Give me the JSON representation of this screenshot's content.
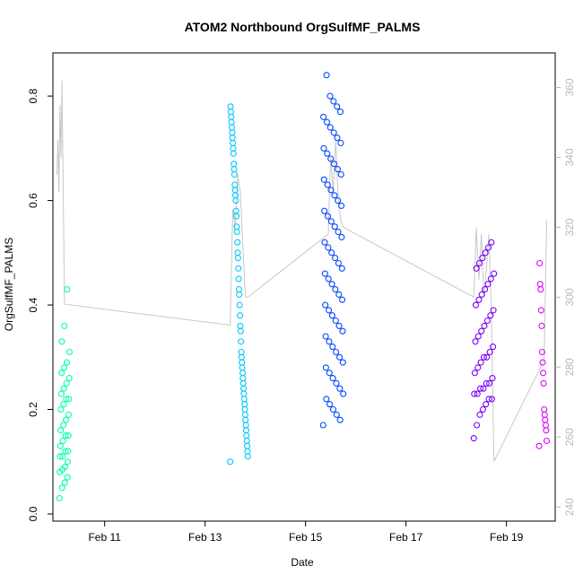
{
  "chart_data": {
    "type": "scatter",
    "title": "ATOM2 Northbound OrgSulfMF_PALMS",
    "xlabel": "Date",
    "ylabel": "OrgSulfMF_PALMS",
    "x_unit": "days of February 2017",
    "xlim": [
      9.97,
      19.97
    ],
    "ylim": [
      0.0,
      0.85
    ],
    "y2lim": [
      238,
      365
    ],
    "x_ticks": [
      {
        "value": 11,
        "label": "Feb 11"
      },
      {
        "value": 13,
        "label": "Feb 13"
      },
      {
        "value": 15,
        "label": "Feb 15"
      },
      {
        "value": 17,
        "label": "Feb 17"
      },
      {
        "value": 19,
        "label": "Feb 19"
      }
    ],
    "y_ticks": [
      0.0,
      0.2,
      0.4,
      0.6,
      0.8
    ],
    "y_tick_labels": [
      "0.0",
      "0.2",
      "0.4",
      "0.6",
      "0.8"
    ],
    "y2_ticks": [
      240,
      260,
      280,
      300,
      320,
      340,
      360
    ],
    "y2_tick_labels": [
      "240",
      "260",
      "280",
      "300",
      "320",
      "340",
      "360"
    ],
    "grid": false,
    "legend": "none",
    "background_line_color": "#c8c8c8",
    "right_axis_color": "#b8b8b8",
    "series": [
      {
        "color": "#00ffb0",
        "x_range": [
          10.1,
          10.3
        ],
        "values": [
          0.03,
          0.05,
          0.06,
          0.07,
          0.08,
          0.085,
          0.09,
          0.1,
          0.11,
          0.11,
          0.12,
          0.12,
          0.13,
          0.14,
          0.15,
          0.15,
          0.16,
          0.17,
          0.18,
          0.19,
          0.2,
          0.21,
          0.22,
          0.22,
          0.23,
          0.24,
          0.25,
          0.26,
          0.27,
          0.28,
          0.29,
          0.31,
          0.33,
          0.36,
          0.43
        ]
      },
      {
        "color": "#00c8ff",
        "x_range": [
          13.5,
          13.85
        ],
        "values": [
          0.1,
          0.11,
          0.12,
          0.13,
          0.14,
          0.15,
          0.16,
          0.17,
          0.18,
          0.19,
          0.2,
          0.21,
          0.22,
          0.23,
          0.24,
          0.25,
          0.26,
          0.27,
          0.28,
          0.29,
          0.3,
          0.31,
          0.33,
          0.35,
          0.36,
          0.38,
          0.4,
          0.42,
          0.43,
          0.45,
          0.47,
          0.49,
          0.5,
          0.52,
          0.54,
          0.55,
          0.57,
          0.58,
          0.6,
          0.61,
          0.62,
          0.63,
          0.65,
          0.66,
          0.67,
          0.69,
          0.7,
          0.71,
          0.72,
          0.73,
          0.74,
          0.75,
          0.76,
          0.77,
          0.78
        ]
      },
      {
        "color": "#0048ff",
        "x_range": [
          15.35,
          15.75
        ],
        "values": [
          0.17,
          0.18,
          0.19,
          0.2,
          0.21,
          0.22,
          0.23,
          0.24,
          0.25,
          0.26,
          0.27,
          0.28,
          0.29,
          0.3,
          0.31,
          0.32,
          0.33,
          0.34,
          0.35,
          0.36,
          0.37,
          0.38,
          0.39,
          0.4,
          0.41,
          0.42,
          0.43,
          0.44,
          0.45,
          0.46,
          0.47,
          0.48,
          0.49,
          0.5,
          0.51,
          0.52,
          0.53,
          0.54,
          0.55,
          0.56,
          0.57,
          0.58,
          0.59,
          0.6,
          0.61,
          0.62,
          0.63,
          0.64,
          0.65,
          0.66,
          0.67,
          0.68,
          0.69,
          0.7,
          0.71,
          0.72,
          0.73,
          0.74,
          0.75,
          0.76,
          0.77,
          0.78,
          0.79,
          0.8,
          0.84
        ]
      },
      {
        "color": "#7a00ff",
        "x_range": [
          18.35,
          18.75
        ],
        "values": [
          0.145,
          0.17,
          0.19,
          0.2,
          0.21,
          0.22,
          0.22,
          0.23,
          0.23,
          0.24,
          0.24,
          0.25,
          0.25,
          0.26,
          0.27,
          0.28,
          0.29,
          0.3,
          0.3,
          0.31,
          0.32,
          0.33,
          0.34,
          0.35,
          0.36,
          0.37,
          0.38,
          0.39,
          0.4,
          0.41,
          0.42,
          0.43,
          0.44,
          0.45,
          0.46,
          0.47,
          0.48,
          0.49,
          0.5,
          0.51,
          0.52
        ]
      },
      {
        "color": "#e000ff",
        "x_range": [
          19.65,
          19.8
        ],
        "values": [
          0.13,
          0.14,
          0.16,
          0.17,
          0.18,
          0.19,
          0.2,
          0.25,
          0.27,
          0.29,
          0.31,
          0.36,
          0.39,
          0.43,
          0.44,
          0.48
        ]
      }
    ],
    "background_line": {
      "axis": "right",
      "x": [
        10.05,
        10.07,
        10.09,
        10.11,
        10.13,
        10.15,
        10.2,
        13.5,
        13.55,
        13.6,
        13.65,
        13.7,
        13.75,
        13.8,
        13.85,
        15.45,
        15.5,
        15.55,
        15.6,
        15.65,
        15.7,
        15.75,
        18.35,
        18.4,
        18.45,
        18.5,
        18.55,
        18.6,
        18.65,
        18.7,
        18.75,
        19.75,
        19.8
      ],
      "y": [
        335,
        345,
        330,
        355,
        340,
        362,
        298,
        292,
        325,
        320,
        335,
        330,
        315,
        300,
        300,
        318,
        340,
        330,
        345,
        328,
        322,
        320,
        300,
        320,
        305,
        318,
        300,
        308,
        318,
        295,
        253,
        282,
        322
      ]
    }
  }
}
